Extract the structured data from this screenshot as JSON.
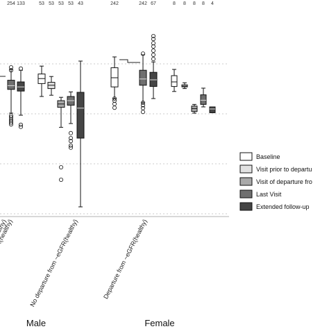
{
  "chart_data": {
    "type": "box",
    "series_legend": [
      {
        "name": "Baseline",
        "color": "#ffffff"
      },
      {
        "name": "Visit prior to departu",
        "color": "#e2e2e2"
      },
      {
        "name": "Visit of departure fro",
        "color": "#a9a9a9"
      },
      {
        "name": "Last Visit",
        "color": "#6f6f6f"
      },
      {
        "name": "Extended follow-up",
        "color": "#454545"
      }
    ],
    "groups": [
      {
        "label": "nealthy)",
        "sex": "Male",
        "boxes": [
          {
            "series": "Last Visit",
            "count": "254",
            "q1": 11.2,
            "median": 12.1,
            "q3": 13.4,
            "wlo": 5.5,
            "whi": 16.0,
            "outliers": [
              2.8,
              3.2,
              3.6,
              4.0,
              4.5,
              4.9,
              15.8,
              16.5
            ]
          },
          {
            "series": "Extended follow-up",
            "count": "133",
            "q1": 10.8,
            "median": 11.8,
            "q3": 13.0,
            "wlo": 5.0,
            "whi": 15.8,
            "outliers": [
              2.2,
              2.7,
              16.2
            ]
          }
        ]
      },
      {
        "label": "Departure from ~eGFR(healthy)",
        "sex": "Male",
        "boxes": [
          {
            "series": "Baseline",
            "count": "53",
            "q1": 12.6,
            "median": 13.8,
            "q3": 14.9,
            "wlo": 9.5,
            "whi": 16.8,
            "outliers": []
          },
          {
            "series": "Visit prior to departure",
            "count": "53",
            "q1": 11.4,
            "median": 12.2,
            "q3": 12.9,
            "wlo": 9.8,
            "whi": 14.3,
            "outliers": []
          },
          {
            "series": "Visit of departure",
            "count": "53",
            "q1": 6.9,
            "median": 7.7,
            "q3": 8.5,
            "wlo": 2.1,
            "whi": 9.3,
            "outliers": [
              -7.5,
              -10.5
            ]
          },
          {
            "series": "Last Visit",
            "count": "53",
            "q1": 7.4,
            "median": 8.5,
            "q3": 9.5,
            "wlo": 3.0,
            "whi": 10.6,
            "outliers": [
              -0.5,
              -1.2,
              -2.3,
              -2.8,
              0.7
            ]
          },
          {
            "series": "Extended follow-up",
            "count": "43",
            "q1": -0.5,
            "median": 6.7,
            "q3": 10.5,
            "wlo": -17.0,
            "whi": 18.0,
            "outliers": []
          }
        ]
      },
      {
        "label": "No departure from ~eGFR(healthy)",
        "sex": "Female",
        "boxes": [
          {
            "series": "Baseline",
            "count": "242",
            "q1": 11.8,
            "median": 14.0,
            "q3": 16.4,
            "wlo": 9.0,
            "whi": 19.0,
            "outliers": [
              6.8,
              7.7,
              8.5,
              9.0
            ]
          },
          {
            "series": "Last Visit",
            "count": "242",
            "q1": 12.2,
            "median": 13.7,
            "q3": 15.8,
            "wlo": 8.0,
            "whi": 19.5,
            "outliers": [
              5.8,
              6.7,
              7.4,
              8.0,
              19.8
            ]
          },
          {
            "series": "Extended follow-up",
            "count": "67",
            "q1": 11.9,
            "median": 13.5,
            "q3": 15.3,
            "wlo": 9.0,
            "whi": 17.8,
            "outliers": [
              18.5,
              19.5,
              20.5,
              21.5,
              22.3,
              23.3,
              24.0
            ]
          }
        ]
      },
      {
        "label": "Departure from ~eGFR(healthy)",
        "sex": "Female",
        "boxes": [
          {
            "series": "Baseline",
            "count": "8",
            "q1": 11.9,
            "median": 13.0,
            "q3": 14.5,
            "wlo": 10.7,
            "whi": 16.0,
            "outliers": []
          },
          {
            "series": "Visit prior to departure",
            "count": "8",
            "q1": 11.8,
            "median": 12.0,
            "q3": 12.3,
            "wlo": 11.4,
            "whi": 12.8,
            "outliers": []
          },
          {
            "series": "Visit of departure",
            "count": "8",
            "q1": 5.9,
            "median": 6.6,
            "q3": 7.2,
            "wlo": 5.5,
            "whi": 7.6,
            "outliers": []
          },
          {
            "series": "Last Visit",
            "count": "8",
            "q1": 7.6,
            "median": 8.6,
            "q3": 9.9,
            "wlo": 7.0,
            "whi": 11.5,
            "outliers": []
          },
          {
            "series": "Extended follow-up",
            "count": "4",
            "q1": 5.6,
            "median": 6.5,
            "q3": 7.0,
            "wlo": 5.6,
            "whi": 7.0,
            "outliers": []
          }
        ]
      }
    ],
    "sex_labels": [
      "Male",
      "Female"
    ],
    "xlim_data": [
      -22,
      26
    ]
  }
}
